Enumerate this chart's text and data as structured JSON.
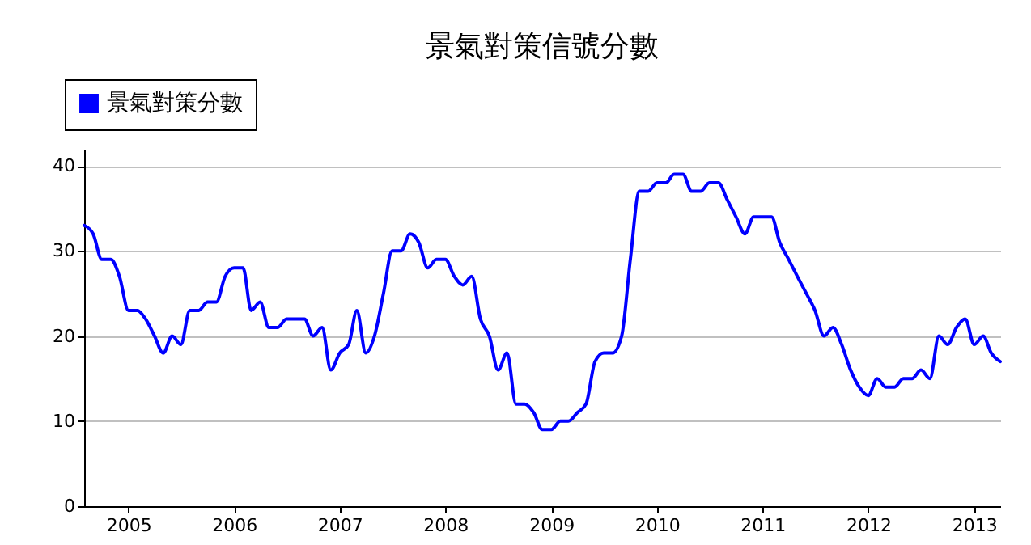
{
  "chart_data": {
    "type": "line",
    "title": "景氣對策信號分數",
    "x": [
      "2004-08",
      "2004-09",
      "2004-10",
      "2004-11",
      "2004-12",
      "2005-01",
      "2005-02",
      "2005-03",
      "2005-04",
      "2005-05",
      "2005-06",
      "2005-07",
      "2005-08",
      "2005-09",
      "2005-10",
      "2005-11",
      "2005-12",
      "2006-01",
      "2006-02",
      "2006-03",
      "2006-04",
      "2006-05",
      "2006-06",
      "2006-07",
      "2006-08",
      "2006-09",
      "2006-10",
      "2006-11",
      "2006-12",
      "2007-01",
      "2007-02",
      "2007-03",
      "2007-04",
      "2007-05",
      "2007-06",
      "2007-07",
      "2007-08",
      "2007-09",
      "2007-10",
      "2007-11",
      "2007-12",
      "2008-01",
      "2008-02",
      "2008-03",
      "2008-04",
      "2008-05",
      "2008-06",
      "2008-07",
      "2008-08",
      "2008-09",
      "2008-10",
      "2008-11",
      "2008-12",
      "2009-01",
      "2009-02",
      "2009-03",
      "2009-04",
      "2009-05",
      "2009-06",
      "2009-07",
      "2009-08",
      "2009-09",
      "2009-10",
      "2009-11",
      "2009-12",
      "2010-01",
      "2010-02",
      "2010-03",
      "2010-04",
      "2010-05",
      "2010-06",
      "2010-07",
      "2010-08",
      "2010-09",
      "2010-10",
      "2010-11",
      "2010-12",
      "2011-01",
      "2011-02",
      "2011-03",
      "2011-04",
      "2011-05",
      "2011-06",
      "2011-07",
      "2011-08",
      "2011-09",
      "2011-10",
      "2011-11",
      "2011-12",
      "2012-01",
      "2012-02",
      "2012-03",
      "2012-04",
      "2012-05",
      "2012-06",
      "2012-07",
      "2012-08",
      "2012-09",
      "2012-10",
      "2012-11",
      "2012-12",
      "2013-01",
      "2013-02",
      "2013-03",
      "2013-04"
    ],
    "series": [
      {
        "name": "景氣對策分數",
        "color": "#0000ff",
        "values": [
          33,
          32,
          29,
          29,
          27,
          23,
          23,
          22,
          20,
          18,
          20,
          19,
          23,
          23,
          24,
          24,
          27,
          28,
          28,
          23,
          24,
          21,
          21,
          22,
          22,
          22,
          20,
          21,
          16,
          18,
          19,
          23,
          18,
          20,
          25,
          30,
          30,
          32,
          31,
          28,
          29,
          29,
          27,
          26,
          27,
          22,
          20,
          16,
          18,
          12,
          12,
          11,
          9,
          9,
          10,
          10,
          11,
          12,
          17,
          18,
          18,
          20,
          29,
          37,
          37,
          38,
          38,
          39,
          39,
          37,
          37,
          38,
          38,
          36,
          34,
          32,
          34,
          34,
          34,
          31,
          29,
          27,
          25,
          23,
          20,
          21,
          19,
          16,
          14,
          13,
          15,
          14,
          14,
          15,
          15,
          16,
          15,
          20,
          19,
          21,
          22,
          19,
          20,
          18,
          17
        ]
      }
    ],
    "xlim": [
      "2004-08",
      "2013-04"
    ],
    "xticks": [
      {
        "value": "2005",
        "label": "2005"
      },
      {
        "value": "2006",
        "label": "2006"
      },
      {
        "value": "2007",
        "label": "2007"
      },
      {
        "value": "2008",
        "label": "2008"
      },
      {
        "value": "2009",
        "label": "2009"
      },
      {
        "value": "2010",
        "label": "2010"
      },
      {
        "value": "2011",
        "label": "2011"
      },
      {
        "value": "2012",
        "label": "2012"
      },
      {
        "value": "2013",
        "label": "2013"
      }
    ],
    "ylim": [
      0,
      42
    ],
    "yticks": [
      0,
      10,
      20,
      30,
      40
    ],
    "grid": "y",
    "legend": "top left",
    "marker": "none",
    "line_style": "solid"
  }
}
